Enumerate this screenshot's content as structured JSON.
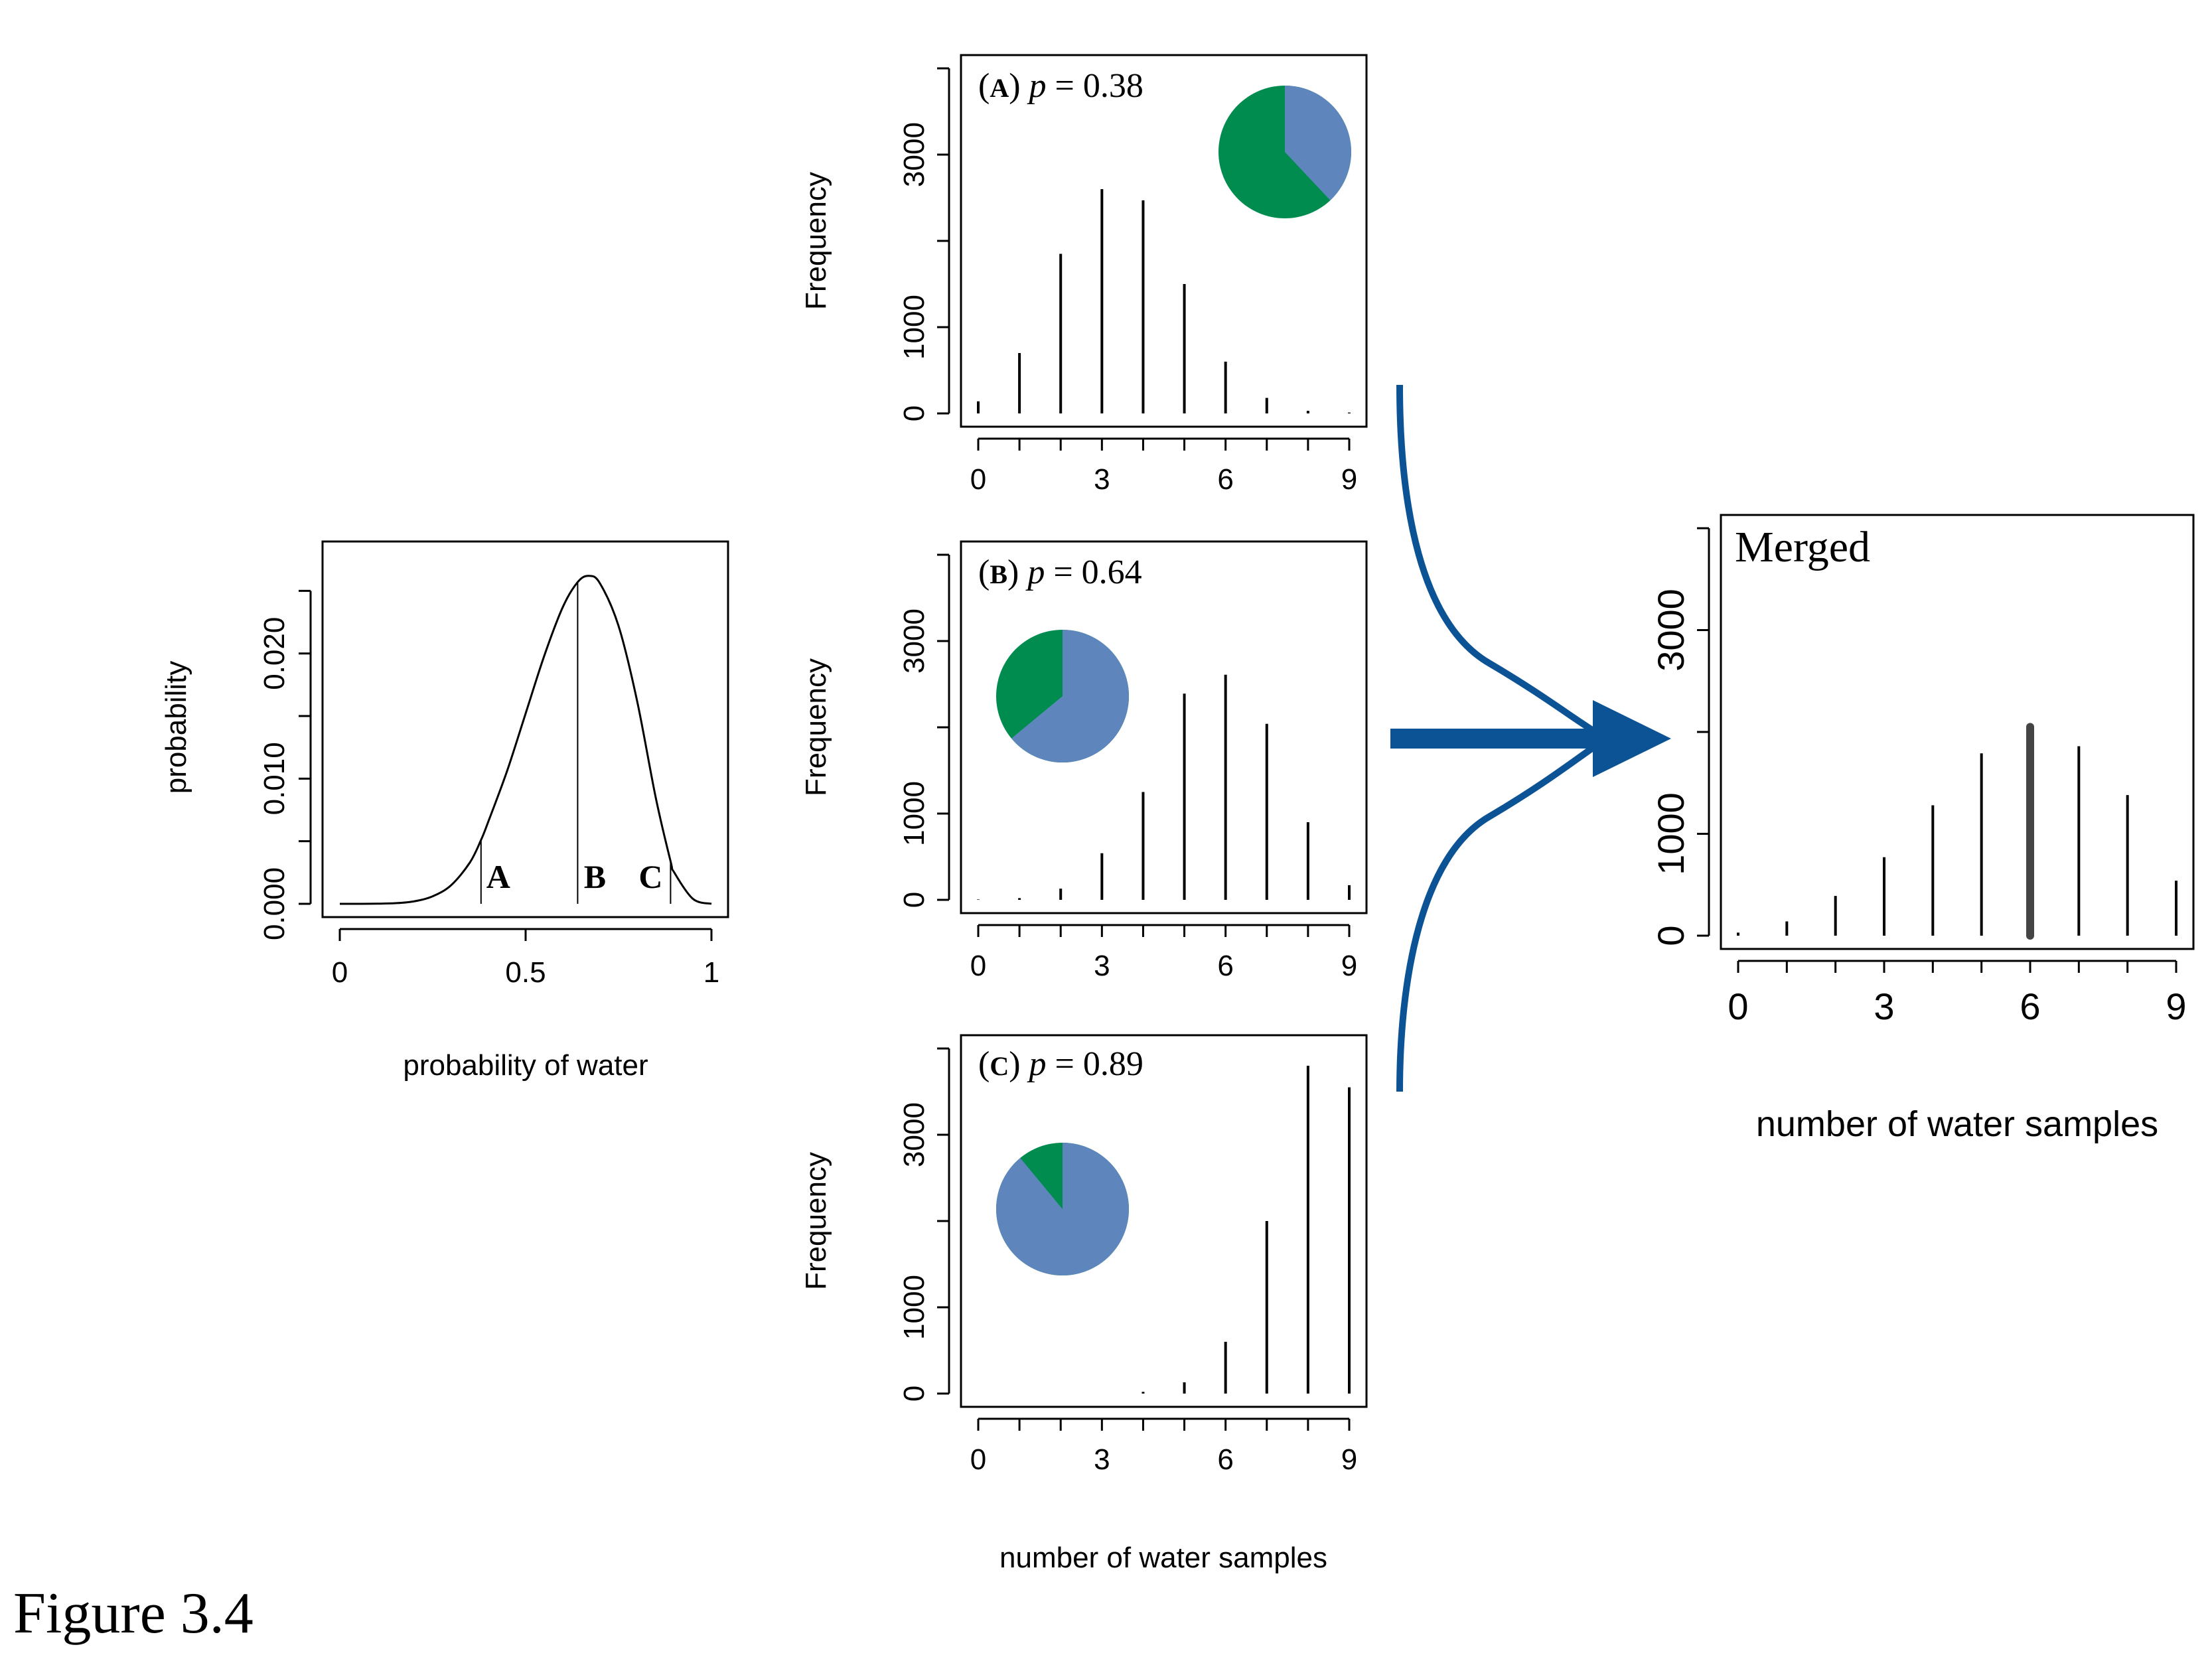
{
  "figure_caption": "Figure 3.4",
  "colors": {
    "water": "#5e86bd",
    "land": "#008c4f",
    "arrow": "#0b5394",
    "ink": "#000000",
    "merged_highlight": "#444444"
  },
  "chart_data": [
    {
      "id": "prior",
      "type": "line",
      "xlabel": "probability of water",
      "ylabel": "probability",
      "xlim": [
        0,
        1
      ],
      "ylim": [
        0,
        0.025
      ],
      "x_ticks": [
        0,
        0.5,
        1
      ],
      "x_tick_labels": [
        "0",
        "0.5",
        "1"
      ],
      "y_ticks": [
        0,
        0.01,
        0.02
      ],
      "y_tick_labels": [
        "0.000",
        "0.010",
        "0.020"
      ],
      "curve": {
        "x": [
          0,
          0.05,
          0.1,
          0.15,
          0.2,
          0.25,
          0.3,
          0.35,
          0.38,
          0.4,
          0.45,
          0.5,
          0.55,
          0.6,
          0.64,
          0.67,
          0.7,
          0.75,
          0.8,
          0.85,
          0.89,
          0.9,
          0.95,
          1
        ],
        "y": [
          0,
          0,
          1e-05,
          5e-05,
          0.0002,
          0.0006,
          0.0015,
          0.0033,
          0.0051,
          0.0066,
          0.0106,
          0.0152,
          0.0198,
          0.0237,
          0.0257,
          0.0262,
          0.0256,
          0.0222,
          0.0162,
          0.0085,
          0.0034,
          0.0025,
          0.0004,
          0
        ]
      },
      "markers": [
        {
          "label": "A",
          "x": 0.38,
          "y": 0.0051
        },
        {
          "label": "B",
          "x": 0.64,
          "y": 0.0257
        },
        {
          "label": "C",
          "x": 0.89,
          "y": 0.0034
        }
      ]
    },
    {
      "id": "A",
      "type": "bar",
      "panel_letter": "A",
      "p_label": "p",
      "p_value": "= 0.38",
      "water_fraction": 0.38,
      "ylabel": "Frequency",
      "xlabel": "",
      "categories": [
        0,
        1,
        2,
        3,
        4,
        5,
        6,
        7,
        8,
        9
      ],
      "values": [
        140,
        700,
        1850,
        2600,
        2470,
        1500,
        600,
        180,
        30,
        10
      ],
      "x_tick_labels": [
        "0",
        "3",
        "6",
        "9"
      ],
      "y_tick_labels": [
        "0",
        "1000",
        "3000"
      ],
      "ylim": [
        0,
        4000
      ]
    },
    {
      "id": "B",
      "type": "bar",
      "panel_letter": "B",
      "p_label": "p",
      "p_value": "= 0.64",
      "water_fraction": 0.64,
      "ylabel": "Frequency",
      "xlabel": "",
      "categories": [
        0,
        1,
        2,
        3,
        4,
        5,
        6,
        7,
        8,
        9
      ],
      "values": [
        5,
        20,
        130,
        540,
        1250,
        2390,
        2610,
        2040,
        900,
        170
      ],
      "x_tick_labels": [
        "0",
        "3",
        "6",
        "9"
      ],
      "y_tick_labels": [
        "0",
        "1000",
        "3000"
      ],
      "ylim": [
        0,
        4000
      ]
    },
    {
      "id": "C",
      "type": "bar",
      "panel_letter": "C",
      "p_label": "p",
      "p_value": "= 0.89",
      "water_fraction": 0.89,
      "ylabel": "Frequency",
      "xlabel": "number of water samples",
      "categories": [
        0,
        1,
        2,
        3,
        4,
        5,
        6,
        7,
        8,
        9
      ],
      "values": [
        0,
        0,
        0,
        0,
        20,
        130,
        600,
        2000,
        3800,
        3550
      ],
      "x_tick_labels": [
        "0",
        "3",
        "6",
        "9"
      ],
      "y_tick_labels": [
        "0",
        "1000",
        "3000"
      ],
      "ylim": [
        0,
        4000
      ]
    },
    {
      "id": "merged",
      "type": "bar",
      "title": "Merged",
      "xlabel": "number of water samples",
      "ylabel": "",
      "categories": [
        0,
        1,
        2,
        3,
        4,
        5,
        6,
        7,
        8,
        9
      ],
      "values": [
        30,
        140,
        390,
        770,
        1280,
        1790,
        2050,
        1860,
        1380,
        540
      ],
      "highlight_index": 6,
      "x_tick_labels": [
        "0",
        "3",
        "6",
        "9"
      ],
      "y_tick_labels": [
        "0",
        "1000",
        "3000"
      ],
      "ylim": [
        0,
        4000
      ]
    }
  ]
}
